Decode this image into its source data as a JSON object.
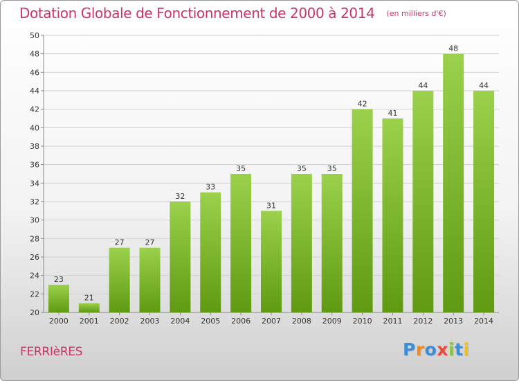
{
  "title": "Dotation Globale de Fonctionnement de 2000 à 2014",
  "subtitle": "(en milliers d'€)",
  "commune": "FERRIèRES",
  "logo": {
    "letters": [
      "P",
      "r",
      "o",
      "x",
      "i",
      "t",
      "i"
    ],
    "colors": [
      "#3a8fd8",
      "#f08a1c",
      "#3a8fd8",
      "#e84b3c",
      "#8cc63f",
      "#3a8fd8",
      "#f2c01a"
    ]
  },
  "colors": {
    "title": "#cc3366",
    "bar_top": "#9bd14c",
    "bar_bottom": "#5f9a12",
    "grid": "#d0d0d0",
    "axis": "#888888"
  },
  "chart_data": {
    "type": "bar",
    "title": "Dotation Globale de Fonctionnement de 2000 à 2014",
    "subtitle": "(en milliers d'€)",
    "categories": [
      "2000",
      "2001",
      "2002",
      "2003",
      "2004",
      "2005",
      "2006",
      "2007",
      "2008",
      "2009",
      "2010",
      "2011",
      "2012",
      "2013",
      "2014"
    ],
    "values": [
      23,
      21,
      27,
      27,
      32,
      33,
      35,
      31,
      35,
      35,
      42,
      41,
      44,
      48,
      44
    ],
    "xlabel": "",
    "ylabel": "",
    "ylim": [
      20,
      50
    ],
    "yticks": [
      20,
      22,
      24,
      26,
      28,
      30,
      32,
      34,
      36,
      38,
      40,
      42,
      44,
      46,
      48,
      50
    ],
    "grid": true,
    "legend": "none"
  }
}
